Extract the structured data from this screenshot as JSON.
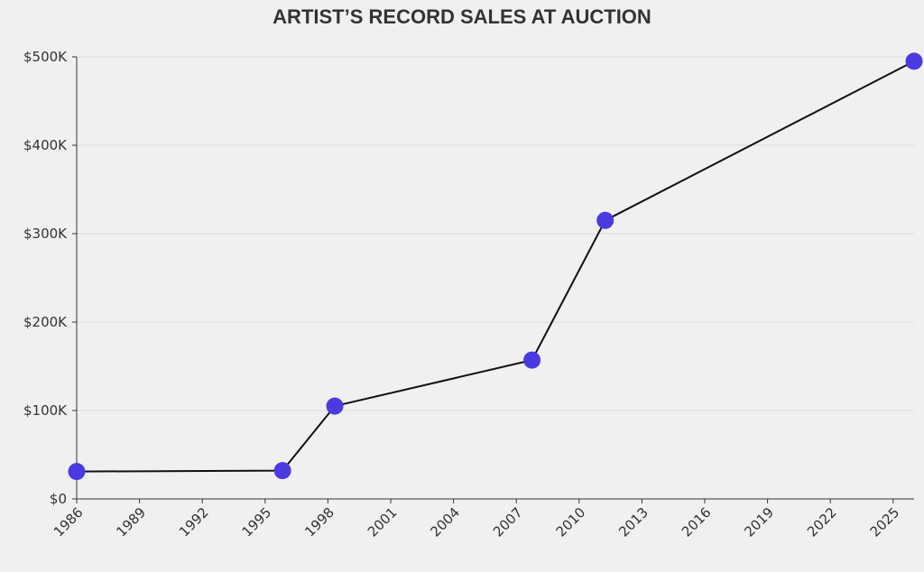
{
  "chart_data": {
    "type": "line",
    "title": "ARTIST’S RECORD SALES AT AUCTION",
    "xlabel": "",
    "ylabel": "",
    "x_axis": {
      "type": "date",
      "range": [
        "1986-01-01",
        "2026-01-01"
      ],
      "tick_labels": [
        "1986",
        "1989",
        "1992",
        "1995",
        "1998",
        "2001",
        "2004",
        "2007",
        "2010",
        "2013",
        "2016",
        "2019",
        "2022",
        "2025"
      ]
    },
    "y_axis": {
      "range": [
        0,
        500000
      ],
      "tick_values": [
        0,
        100000,
        200000,
        300000,
        400000,
        500000
      ],
      "tick_labels": [
        "$0",
        "$100K",
        "$200K",
        "$300K",
        "$400K",
        "$500K"
      ]
    },
    "grid": "horizontal",
    "series": [
      {
        "points": [
          {
            "x": "1986-01-01",
            "y": 31000
          },
          {
            "x": "1995-11-01",
            "y": 32000
          },
          {
            "x": "1998-05-01",
            "y": 105000
          },
          {
            "x": "2007-10-01",
            "y": 157000
          },
          {
            "x": "2011-04-01",
            "y": 315000
          },
          {
            "x": "2026-01-01",
            "y": 495000
          }
        ]
      }
    ],
    "colors": {
      "line": "#111111",
      "marker": "#4b3ae0",
      "grid": "#dddddd",
      "axis": "#333333",
      "text": "#333333"
    }
  }
}
